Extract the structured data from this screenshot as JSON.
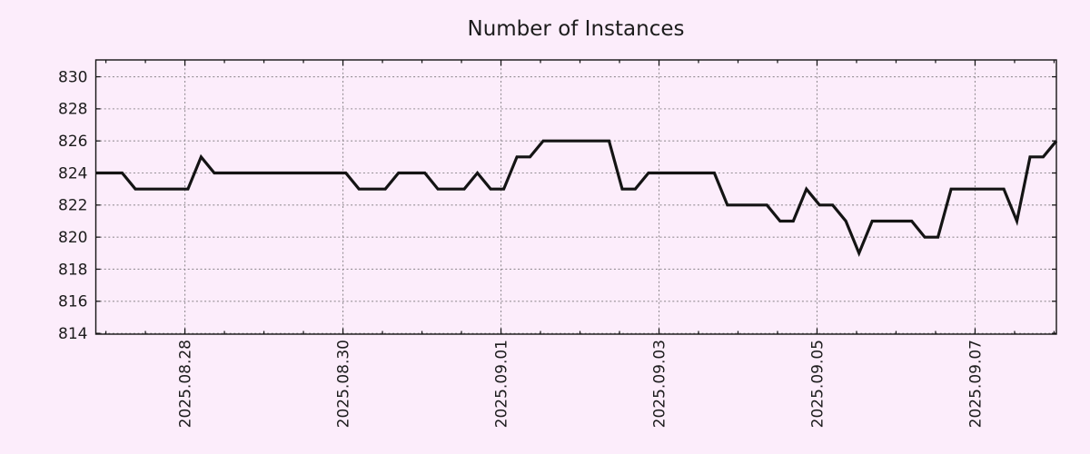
{
  "title": "Number of Instances",
  "colors": {
    "background": "#fcedfb",
    "line": "#141414",
    "grid": "#948e94",
    "axis": "#141414",
    "text": "#1c1c1c"
  },
  "chart_data": {
    "type": "line",
    "title": "Number of Instances",
    "xlabel": "",
    "ylabel": "",
    "legend": "none",
    "grid": true,
    "y_ticks": [
      814,
      816,
      818,
      820,
      822,
      824,
      826,
      828,
      830
    ],
    "ylim": [
      813.95,
      831.05
    ],
    "x_tick_labels": [
      "2025.08.28",
      "2025.08.30",
      "2025.09.01",
      "2025.09.03",
      "2025.09.05",
      "2025.09.07"
    ],
    "x_tick_index_positions": [
      6.77,
      18.78,
      30.79,
      42.8,
      54.81,
      66.82
    ],
    "x_minor_ticks_per_major": 4,
    "series": [
      {
        "name": "instances",
        "color": "#141414",
        "values": [
          824,
          824,
          824,
          823,
          823,
          823,
          823,
          823,
          825,
          824,
          824,
          824,
          824,
          824,
          824,
          824,
          824,
          824,
          824,
          824,
          823,
          823,
          823,
          824,
          824,
          824,
          823,
          823,
          823,
          824,
          823,
          823,
          825,
          825,
          826,
          826,
          826,
          826,
          826,
          826,
          823,
          823,
          824,
          824,
          824,
          824,
          824,
          824,
          822,
          822,
          822,
          822,
          821,
          821,
          823,
          822,
          822,
          821,
          819,
          821,
          821,
          821,
          821,
          820,
          820,
          823,
          823,
          823,
          823,
          823,
          821,
          825,
          825,
          826
        ]
      }
    ]
  }
}
